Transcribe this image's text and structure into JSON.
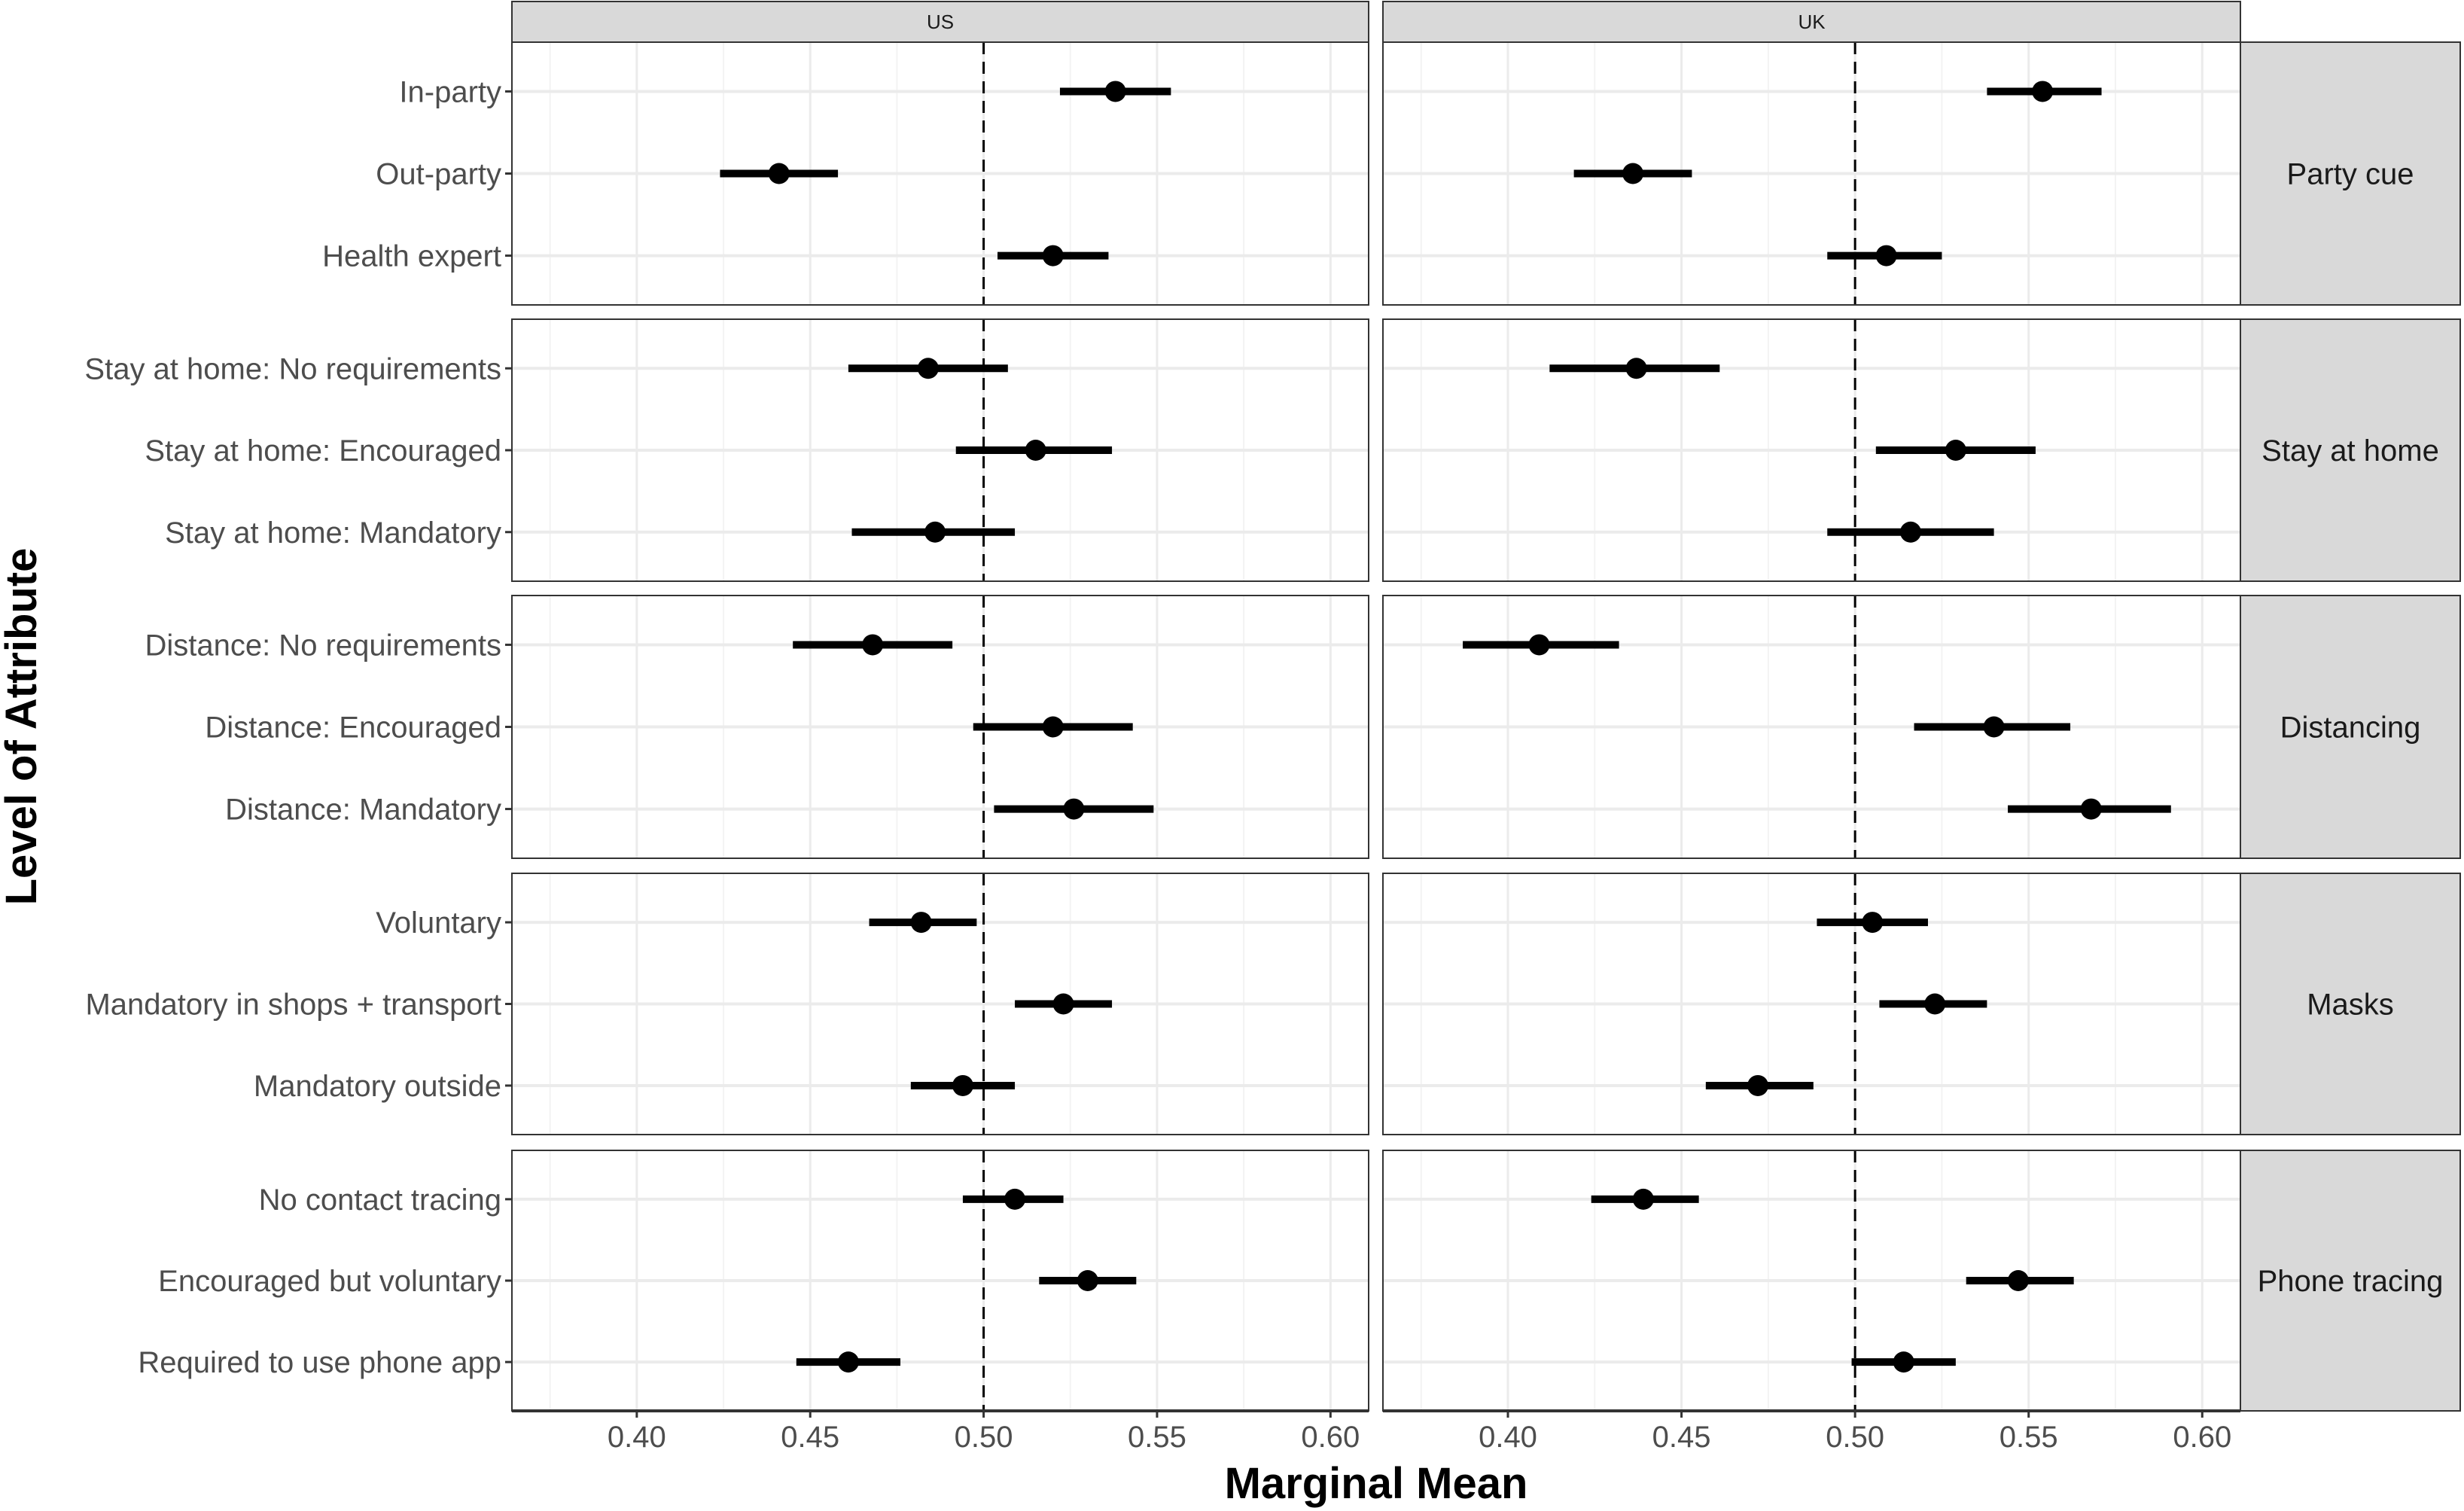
{
  "chart_data": {
    "type": "scatter",
    "subtype": "dot-and-whisker (point estimate with 95% CI), faceted grid",
    "title": "",
    "xlabel": "Marginal Mean",
    "ylabel": "Level of Attribute",
    "xlim": [
      0.364,
      0.611
    ],
    "xticks": [
      0.4,
      0.45,
      0.5,
      0.55,
      0.6
    ],
    "xtick_labels": [
      "0.40",
      "0.45",
      "0.50",
      "0.55",
      "0.60"
    ],
    "reference_line": {
      "x": 0.5,
      "style": "dashed",
      "color": "#000000"
    },
    "grid": true,
    "legend": null,
    "column_facets": [
      "US",
      "UK"
    ],
    "row_facets": [
      "Party cue",
      "Stay at home",
      "Distancing",
      "Masks",
      "Phone tracing"
    ],
    "groups": [
      {
        "facet": "Party cue",
        "levels": [
          "In-party",
          "Out-party",
          "Health expert"
        ],
        "US": [
          {
            "estimate": 0.538,
            "lower": 0.522,
            "upper": 0.554
          },
          {
            "estimate": 0.441,
            "lower": 0.424,
            "upper": 0.458
          },
          {
            "estimate": 0.52,
            "lower": 0.504,
            "upper": 0.536
          }
        ],
        "UK": [
          {
            "estimate": 0.554,
            "lower": 0.538,
            "upper": 0.571
          },
          {
            "estimate": 0.436,
            "lower": 0.419,
            "upper": 0.453
          },
          {
            "estimate": 0.509,
            "lower": 0.492,
            "upper": 0.525
          }
        ]
      },
      {
        "facet": "Stay at home",
        "levels": [
          "Stay at home: No requirements",
          "Stay at home: Encouraged",
          "Stay at home: Mandatory"
        ],
        "US": [
          {
            "estimate": 0.484,
            "lower": 0.461,
            "upper": 0.507
          },
          {
            "estimate": 0.515,
            "lower": 0.492,
            "upper": 0.537
          },
          {
            "estimate": 0.486,
            "lower": 0.462,
            "upper": 0.509
          }
        ],
        "UK": [
          {
            "estimate": 0.437,
            "lower": 0.412,
            "upper": 0.461
          },
          {
            "estimate": 0.529,
            "lower": 0.506,
            "upper": 0.552
          },
          {
            "estimate": 0.516,
            "lower": 0.492,
            "upper": 0.54
          }
        ]
      },
      {
        "facet": "Distancing",
        "levels": [
          "Distance: No requirements",
          "Distance: Encouraged",
          "Distance: Mandatory"
        ],
        "US": [
          {
            "estimate": 0.468,
            "lower": 0.445,
            "upper": 0.491
          },
          {
            "estimate": 0.52,
            "lower": 0.497,
            "upper": 0.543
          },
          {
            "estimate": 0.526,
            "lower": 0.503,
            "upper": 0.549
          }
        ],
        "UK": [
          {
            "estimate": 0.409,
            "lower": 0.387,
            "upper": 0.432
          },
          {
            "estimate": 0.54,
            "lower": 0.517,
            "upper": 0.562
          },
          {
            "estimate": 0.568,
            "lower": 0.544,
            "upper": 0.591
          }
        ]
      },
      {
        "facet": "Masks",
        "levels": [
          "Voluntary",
          "Mandatory in shops + transport",
          "Mandatory outside"
        ],
        "US": [
          {
            "estimate": 0.482,
            "lower": 0.467,
            "upper": 0.498
          },
          {
            "estimate": 0.523,
            "lower": 0.509,
            "upper": 0.537
          },
          {
            "estimate": 0.494,
            "lower": 0.479,
            "upper": 0.509
          }
        ],
        "UK": [
          {
            "estimate": 0.505,
            "lower": 0.489,
            "upper": 0.521
          },
          {
            "estimate": 0.523,
            "lower": 0.507,
            "upper": 0.538
          },
          {
            "estimate": 0.472,
            "lower": 0.457,
            "upper": 0.488
          }
        ]
      },
      {
        "facet": "Phone tracing",
        "levels": [
          "No contact tracing",
          "Encouraged but voluntary",
          "Required to use phone app"
        ],
        "US": [
          {
            "estimate": 0.509,
            "lower": 0.494,
            "upper": 0.523
          },
          {
            "estimate": 0.53,
            "lower": 0.516,
            "upper": 0.544
          },
          {
            "estimate": 0.461,
            "lower": 0.446,
            "upper": 0.476
          }
        ],
        "UK": [
          {
            "estimate": 0.439,
            "lower": 0.424,
            "upper": 0.455
          },
          {
            "estimate": 0.547,
            "lower": 0.532,
            "upper": 0.563
          },
          {
            "estimate": 0.514,
            "lower": 0.499,
            "upper": 0.529
          }
        ]
      }
    ]
  },
  "colors": {
    "background": "#ffffff",
    "panel_background": "#ffffff",
    "panel_border": "#333333",
    "strip_fill": "#d9d9d9",
    "strip_border": "#333333",
    "grid_major": "#ebebeb",
    "grid_minor": "#f3f3f3",
    "point": "#000000",
    "tick_label": "#4d4d4d",
    "axis_title": "#000000",
    "strip_text": "#1a1a1a"
  }
}
